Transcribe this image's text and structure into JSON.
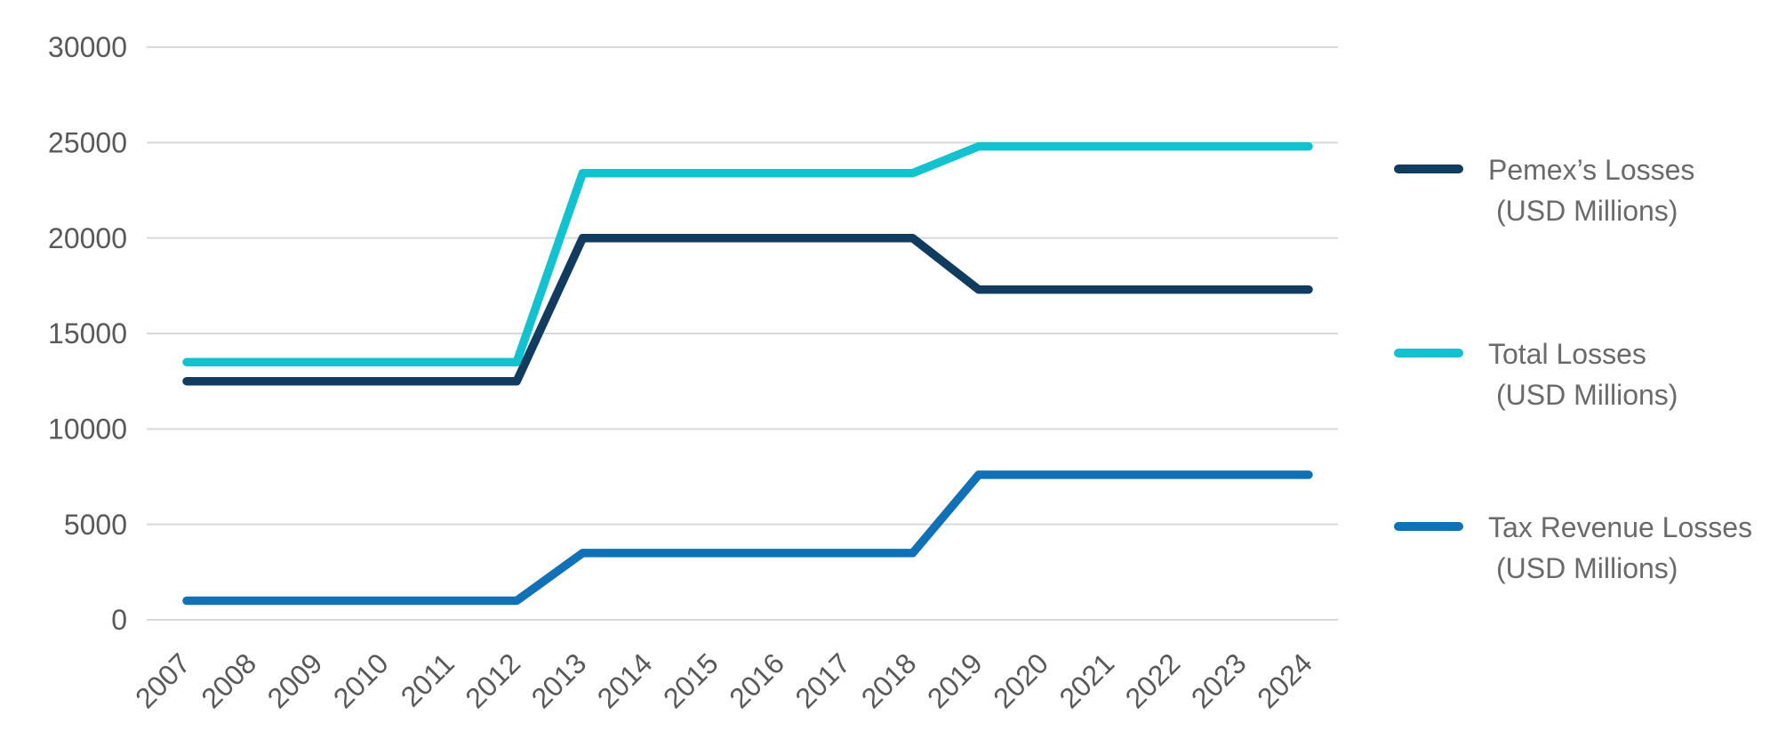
{
  "chart_data": {
    "type": "line",
    "x": [
      2007,
      2008,
      2009,
      2010,
      2011,
      2012,
      2013,
      2014,
      2015,
      2016,
      2017,
      2018,
      2019,
      2020,
      2021,
      2022,
      2023,
      2024
    ],
    "series": [
      {
        "name": "Pemex’s Losses",
        "unit": "(USD Millions)",
        "color": "#113C5F",
        "values": [
          12500,
          12500,
          12500,
          12500,
          12500,
          12500,
          20000,
          20000,
          20000,
          20000,
          20000,
          20000,
          17300,
          17300,
          17300,
          17300,
          17300,
          17300
        ]
      },
      {
        "name": "Total Losses",
        "unit": "(USD Millions)",
        "color": "#12C2CF",
        "values": [
          13500,
          13500,
          13500,
          13500,
          13500,
          13500,
          23400,
          23400,
          23400,
          23400,
          23400,
          23400,
          24800,
          24800,
          24800,
          24800,
          24800,
          24800
        ]
      },
      {
        "name": "Tax Revenue Losses",
        "unit": "(USD Millions)",
        "color": "#1071B7",
        "values": [
          1000,
          1000,
          1000,
          1000,
          1000,
          1000,
          3500,
          3500,
          3500,
          3500,
          3500,
          3500,
          7600,
          7600,
          7600,
          7600,
          7600,
          7600
        ]
      }
    ],
    "ylim": [
      0,
      30000
    ],
    "yticks": [
      0,
      5000,
      10000,
      15000,
      20000,
      25000,
      30000
    ],
    "grid": "horizontal-only",
    "gridline_color": "#d9d9d9",
    "tick_label_color": "#595959",
    "x_label_rotation_deg": -45,
    "legend_position": "right"
  },
  "legend": {
    "items": [
      {
        "label": "Pemex’s Losses",
        "sublabel": "(USD Millions)"
      },
      {
        "label": "Total Losses",
        "sublabel": "(USD Millions)"
      },
      {
        "label": "Tax Revenue Losses",
        "sublabel": "(USD Millions)"
      }
    ]
  }
}
